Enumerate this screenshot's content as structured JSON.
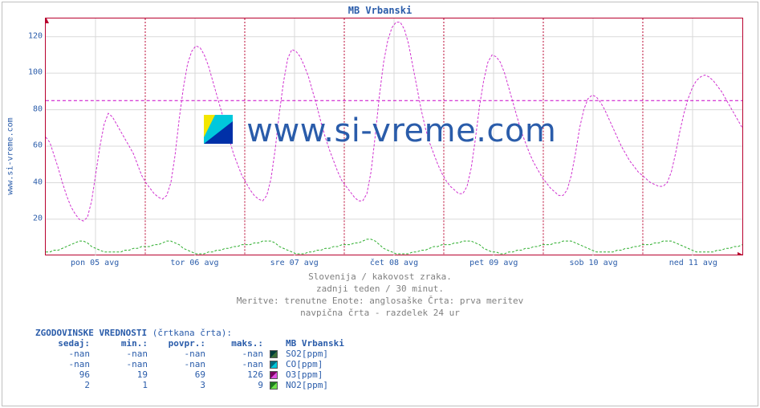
{
  "title": "MB Vrbanski",
  "ylabel": "www.si-vreme.com",
  "watermark_text": "www.si-vreme.com",
  "colors": {
    "text": "#2a5caa",
    "caption": "#808080",
    "plot_border": "#b8002e",
    "grid": "#d9d9d9",
    "ref_line": "#c800c8",
    "series_o3": "#d030d0",
    "series_no2": "#2eae2e",
    "logo_yellow": "#f3e600",
    "logo_cyan": "#00c8dc",
    "logo_blue": "#0030a8",
    "swatch_so2_a": "#003a3a",
    "swatch_so2_b": "#3a6e3a",
    "swatch_co_a": "#006a7e",
    "swatch_co_b": "#00c8dc",
    "swatch_o3_a": "#7a0060",
    "swatch_o3_b": "#e050e0",
    "swatch_no2_a": "#1f7a1f",
    "swatch_no2_b": "#6ee04a"
  },
  "chart": {
    "ylim": [
      0,
      130
    ],
    "yticks": [
      20,
      40,
      60,
      80,
      100,
      120
    ],
    "ref_value": 85,
    "days": 7,
    "xlabels": [
      "pon 05 avg",
      "tor 06 avg",
      "sre 07 avg",
      "čet 08 avg",
      "pet 09 avg",
      "sob 10 avg",
      "ned 11 avg"
    ],
    "o3_hourly": [
      65,
      62,
      55,
      48,
      40,
      33,
      27,
      23,
      20,
      19,
      21,
      30,
      45,
      60,
      72,
      78,
      76,
      72,
      68,
      64,
      60,
      56,
      50,
      44,
      40,
      37,
      34,
      32,
      31,
      33,
      40,
      55,
      75,
      92,
      105,
      112,
      115,
      114,
      110,
      104,
      96,
      88,
      80,
      72,
      64,
      56,
      50,
      44,
      40,
      36,
      33,
      31,
      30,
      33,
      42,
      58,
      78,
      95,
      108,
      113,
      112,
      109,
      104,
      98,
      90,
      82,
      73,
      65,
      58,
      52,
      46,
      41,
      38,
      35,
      32,
      30,
      30,
      34,
      46,
      66,
      88,
      106,
      118,
      125,
      128,
      128,
      124,
      116,
      104,
      92,
      80,
      70,
      62,
      56,
      50,
      45,
      41,
      38,
      36,
      34,
      34,
      38,
      48,
      64,
      82,
      96,
      106,
      110,
      109,
      106,
      100,
      92,
      84,
      76,
      68,
      62,
      56,
      51,
      47,
      43,
      40,
      37,
      35,
      33,
      33,
      36,
      44,
      56,
      70,
      80,
      86,
      88,
      87,
      84,
      80,
      75,
      70,
      65,
      60,
      56,
      52,
      49,
      46,
      44,
      42,
      40,
      39,
      38,
      38,
      40,
      46,
      56,
      68,
      78,
      86,
      92,
      96,
      98,
      99,
      98,
      96,
      93,
      90,
      86,
      82,
      78,
      74,
      70
    ],
    "no2_hourly": [
      2,
      2,
      3,
      3,
      4,
      5,
      6,
      7,
      8,
      8,
      7,
      5,
      4,
      3,
      2,
      2,
      2,
      2,
      2,
      3,
      3,
      4,
      4,
      5,
      5,
      5,
      6,
      6,
      7,
      8,
      8,
      7,
      6,
      4,
      3,
      2,
      1,
      1,
      1,
      2,
      2,
      3,
      3,
      4,
      4,
      5,
      5,
      6,
      6,
      6,
      7,
      7,
      8,
      8,
      8,
      7,
      5,
      4,
      3,
      2,
      1,
      1,
      1,
      2,
      2,
      3,
      3,
      4,
      4,
      5,
      5,
      6,
      6,
      6,
      7,
      7,
      8,
      9,
      9,
      8,
      6,
      4,
      3,
      2,
      1,
      1,
      1,
      1,
      2,
      2,
      3,
      3,
      4,
      5,
      5,
      6,
      6,
      6,
      7,
      7,
      8,
      8,
      8,
      7,
      6,
      4,
      3,
      2,
      2,
      1,
      1,
      2,
      2,
      3,
      3,
      4,
      4,
      5,
      5,
      6,
      6,
      6,
      7,
      7,
      8,
      8,
      8,
      7,
      6,
      5,
      4,
      3,
      2,
      2,
      2,
      2,
      2,
      3,
      3,
      4,
      4,
      5,
      5,
      6,
      6,
      6,
      7,
      7,
      8,
      8,
      8,
      7,
      6,
      5,
      4,
      3,
      2,
      2,
      2,
      2,
      2,
      3,
      3,
      4,
      4,
      5,
      5,
      6
    ]
  },
  "captions": [
    "Slovenija / kakovost zraka.",
    "zadnji teden / 30 minut.",
    "Meritve: trenutne  Enote: anglosaške  Črta: prva meritev",
    "navpična črta - razdelek 24 ur"
  ],
  "legend": {
    "title_prefix": "ZGODOVINSKE VREDNOSTI ",
    "title_suffix": "(črtkana črta)",
    "title_colon": ":",
    "headers": [
      "sedaj:",
      "min.:",
      "povpr.:",
      "maks.:"
    ],
    "series_header": "MB Vrbanski",
    "rows": [
      {
        "label": "SO2[ppm]",
        "vals": [
          "-nan",
          "-nan",
          "-nan",
          "-nan"
        ],
        "swatch": "so2"
      },
      {
        "label": "CO[ppm]",
        "vals": [
          "-nan",
          "-nan",
          "-nan",
          "-nan"
        ],
        "swatch": "co"
      },
      {
        "label": "O3[ppm]",
        "vals": [
          "96",
          "19",
          "69",
          "126"
        ],
        "swatch": "o3"
      },
      {
        "label": "NO2[ppm]",
        "vals": [
          "2",
          "1",
          "3",
          "9"
        ],
        "swatch": "no2"
      }
    ]
  }
}
